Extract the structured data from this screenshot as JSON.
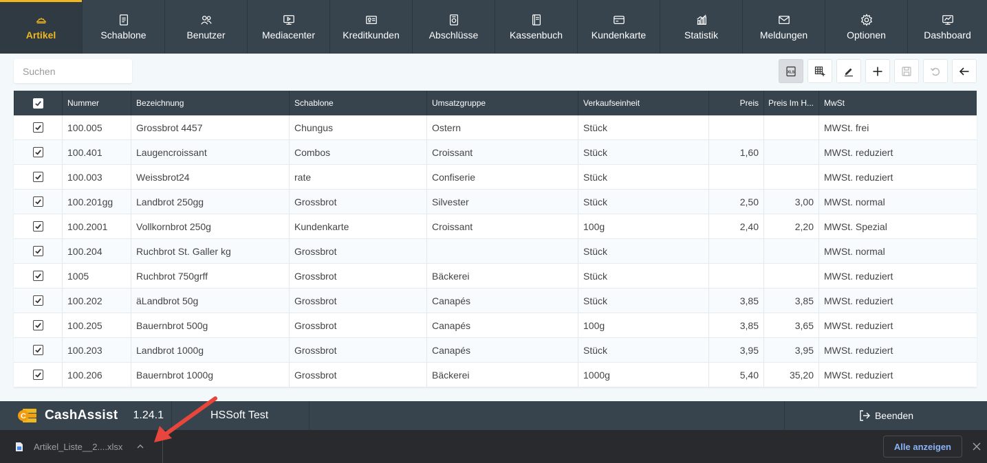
{
  "nav": {
    "items": [
      {
        "label": "Artikel",
        "icon": "bread-icon",
        "active": true
      },
      {
        "label": "Schablone",
        "icon": "document-icon"
      },
      {
        "label": "Benutzer",
        "icon": "users-icon"
      },
      {
        "label": "Mediacenter",
        "icon": "monitor-icon"
      },
      {
        "label": "Kreditkunden",
        "icon": "id-card-icon"
      },
      {
        "label": "Abschlüsse",
        "icon": "receipt-icon"
      },
      {
        "label": "Kassenbuch",
        "icon": "book-icon"
      },
      {
        "label": "Kundenkarte",
        "icon": "card-icon"
      },
      {
        "label": "Statistik",
        "icon": "chart-icon"
      },
      {
        "label": "Meldungen",
        "icon": "envelope-icon"
      },
      {
        "label": "Optionen",
        "icon": "gear-icon"
      },
      {
        "label": "Dashboard",
        "icon": "dashboard-icon"
      }
    ]
  },
  "search": {
    "placeholder": "Suchen"
  },
  "toolbar": {
    "buttons": [
      {
        "icon": "export-excel-icon",
        "state": "selected"
      },
      {
        "icon": "table-add-icon",
        "state": "normal"
      },
      {
        "icon": "edit-icon",
        "state": "normal"
      },
      {
        "icon": "plus-icon",
        "state": "normal"
      },
      {
        "icon": "save-icon",
        "state": "disabled"
      },
      {
        "icon": "undo-icon",
        "state": "disabled"
      },
      {
        "icon": "back-arrow-icon",
        "state": "normal"
      }
    ]
  },
  "table": {
    "headers": {
      "nummer": "Nummer",
      "bezeichnung": "Bezeichnung",
      "schablone": "Schablone",
      "umsatzgruppe": "Umsatzgruppe",
      "verkaufseinheit": "Verkaufseinheit",
      "preis": "Preis",
      "preis_im_haus": "Preis Im H...",
      "mwst": "MwSt"
    },
    "rows": [
      {
        "checked": true,
        "nummer": "100.005",
        "bezeichnung": "Grossbrot 4457",
        "schablone": "Chungus",
        "umsatzgruppe": "Ostern",
        "verkaufseinheit": "Stück",
        "preis": "",
        "preis_im_haus": "",
        "mwst": "MWSt. frei"
      },
      {
        "checked": true,
        "nummer": "100.401",
        "bezeichnung": "Laugencroissant",
        "schablone": "Combos",
        "umsatzgruppe": "Croissant",
        "verkaufseinheit": "Stück",
        "preis": "1,60",
        "preis_im_haus": "",
        "mwst": "MWSt. reduziert"
      },
      {
        "checked": true,
        "nummer": "100.003",
        "bezeichnung": "Weissbrot24",
        "schablone": "rate",
        "umsatzgruppe": "Confiserie",
        "verkaufseinheit": "Stück",
        "preis": "",
        "preis_im_haus": "",
        "mwst": "MWSt. reduziert"
      },
      {
        "checked": true,
        "nummer": "100.201gg",
        "bezeichnung": "Landbrot 250gg",
        "schablone": "Grossbrot",
        "umsatzgruppe": "Silvester",
        "verkaufseinheit": "Stück",
        "preis": "2,50",
        "preis_im_haus": "3,00",
        "mwst": "MWSt. normal"
      },
      {
        "checked": true,
        "nummer": "100.2001",
        "bezeichnung": "Vollkornbrot 250g",
        "schablone": "Kundenkarte",
        "umsatzgruppe": "Croissant",
        "verkaufseinheit": "100g",
        "preis": "2,40",
        "preis_im_haus": "2,20",
        "mwst": "MWSt. Spezial"
      },
      {
        "checked": true,
        "nummer": "100.204",
        "bezeichnung": "Ruchbrot St. Galler kg",
        "schablone": "Grossbrot",
        "umsatzgruppe": "",
        "verkaufseinheit": "Stück",
        "preis": "",
        "preis_im_haus": "",
        "mwst": "MWSt. normal"
      },
      {
        "checked": true,
        "nummer": "1005",
        "bezeichnung": "Ruchbrot 750grff",
        "schablone": "Grossbrot",
        "umsatzgruppe": "Bäckerei",
        "verkaufseinheit": "Stück",
        "preis": "",
        "preis_im_haus": "",
        "mwst": "MWSt. reduziert"
      },
      {
        "checked": true,
        "nummer": "100.202",
        "bezeichnung": "äLandbrot 50g",
        "schablone": "Grossbrot",
        "umsatzgruppe": "Canapés",
        "verkaufseinheit": "Stück",
        "preis": "3,85",
        "preis_im_haus": "3,85",
        "mwst": "MWSt. reduziert"
      },
      {
        "checked": true,
        "nummer": "100.205",
        "bezeichnung": "Bauernbrot 500g",
        "schablone": "Grossbrot",
        "umsatzgruppe": "Canapés",
        "verkaufseinheit": "100g",
        "preis": "3,85",
        "preis_im_haus": "3,65",
        "mwst": "MWSt. reduziert"
      },
      {
        "checked": true,
        "nummer": "100.203",
        "bezeichnung": "Landbrot 1000g",
        "schablone": "Grossbrot",
        "umsatzgruppe": "Canapés",
        "verkaufseinheit": "Stück",
        "preis": "3,95",
        "preis_im_haus": "3,95",
        "mwst": "MWSt. reduziert"
      },
      {
        "checked": true,
        "nummer": "100.206",
        "bezeichnung": "Bauernbrot 1000g",
        "schablone": "Grossbrot",
        "umsatzgruppe": "Bäckerei",
        "verkaufseinheit": "1000g",
        "preis": "5,40",
        "preis_im_haus": "35,20",
        "mwst": "MWSt. reduziert"
      }
    ]
  },
  "footer": {
    "app_name": "CashAssist",
    "version": "1.24.1",
    "company": "HSSoft Test",
    "logout_label": "Beenden"
  },
  "download_bar": {
    "file_name": "Artikel_Liste__2....xlsx",
    "show_all_label": "Alle anzeigen"
  },
  "colors": {
    "nav_bg": "#37434d",
    "accent": "#f0b81f",
    "annotation_arrow": "#e8453c",
    "link": "#8ab4f8"
  }
}
